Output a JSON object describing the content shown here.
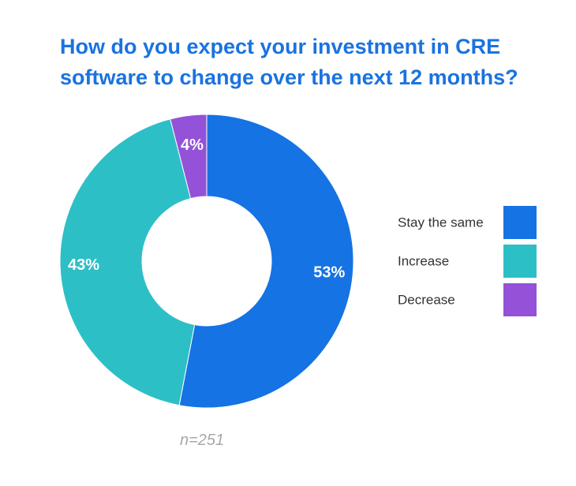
{
  "chart_data": {
    "type": "pie",
    "title_lines": [
      "How do you expect your investment in CRE",
      "software to change over the next 12 months?"
    ],
    "categories": [
      "Stay the same",
      "Increase",
      "Decrease"
    ],
    "values": [
      53,
      43,
      4
    ],
    "value_labels": [
      "53%",
      "43%",
      "4%"
    ],
    "colors": [
      "#1573e3",
      "#2dbfc6",
      "#9452d8"
    ],
    "donut": true,
    "legend_position": "right",
    "note": "n=251"
  }
}
